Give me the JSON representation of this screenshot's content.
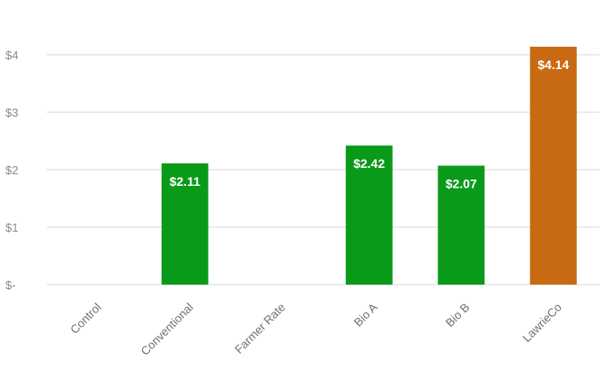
{
  "chart_data": {
    "type": "bar",
    "title": "",
    "xlabel": "",
    "ylabel": "",
    "categories": [
      "Control",
      "Conventional",
      "Farmer Rate",
      "Bio A",
      "Bio B",
      "LawrieCo"
    ],
    "values": [
      0,
      2.11,
      0,
      2.42,
      2.07,
      4.14
    ],
    "data_labels": [
      "",
      "$2.11",
      "",
      "$2.42",
      "$2.07",
      "$4.14"
    ],
    "bar_colors": [
      "#0a9a1a",
      "#0a9a1a",
      "#0a9a1a",
      "#0a9a1a",
      "#0a9a1a",
      "#c86a12"
    ],
    "ylim": [
      0,
      4
    ],
    "yticks": [
      0,
      1,
      2,
      3,
      4
    ],
    "ytick_labels": [
      "$-",
      "$1",
      "$2",
      "$3",
      "$4"
    ],
    "grid": true,
    "legend": "none"
  }
}
